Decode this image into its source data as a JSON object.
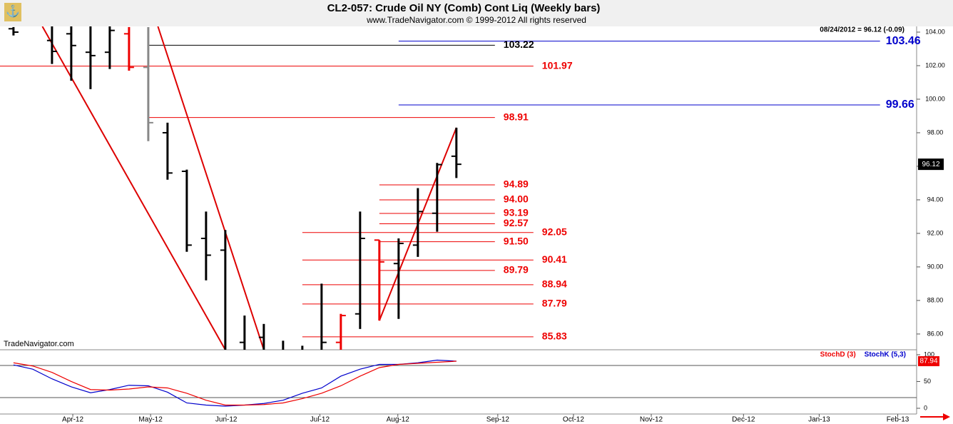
{
  "chart_data": [
    {
      "type": "ohlc",
      "title": "CL2-057:  Crude Oil NY (Comb) Cont Liq  (Weekly bars)",
      "subtitle": "www.TradeNavigator.com © 1999-2012 All rights reserved",
      "info": "08/24/2012 = 96.12 (-0.09)",
      "watermark": "TradeNavigator.com",
      "x": [
        0,
        2,
        3,
        4,
        5,
        6,
        7,
        8,
        9,
        10,
        11,
        12,
        13,
        14,
        15,
        16,
        17,
        18,
        19,
        20,
        21,
        22,
        23
      ],
      "open": [
        104.2,
        103.5,
        103.9,
        102.8,
        102.8,
        103.9,
        101.9,
        98.0,
        95.7,
        91.7,
        91.0,
        85.5,
        85.8,
        85.0,
        84.8,
        85.0,
        85.5,
        87.2,
        91.6,
        90.2,
        91.3,
        93.2,
        96.6
      ],
      "high": [
        104.3,
        104.6,
        104.6,
        104.4,
        104.5,
        104.3,
        104.3,
        98.6,
        95.8,
        93.3,
        92.2,
        87.1,
        86.6,
        85.6,
        85.3,
        89.0,
        87.2,
        93.3,
        91.6,
        91.7,
        94.7,
        96.2,
        98.3
      ],
      "low": [
        103.8,
        102.1,
        101.1,
        100.6,
        101.8,
        101.7,
        97.5,
        95.2,
        90.9,
        89.2,
        84.5,
        84.5,
        84.3,
        84.2,
        84.0,
        84.6,
        84.9,
        86.3,
        86.8,
        86.9,
        90.6,
        92.1,
        95.3
      ],
      "close": [
        104.0,
        102.85,
        103.2,
        102.6,
        104.1,
        101.9,
        98.6,
        95.6,
        91.3,
        90.7,
        84.9,
        85.0,
        84.8,
        84.5,
        84.4,
        85.5,
        87.1,
        91.7,
        90.3,
        91.4,
        93.3,
        96.1,
        96.12
      ],
      "colors": [
        "#000000",
        "#000000",
        "#000000",
        "#000000",
        "#000000",
        "#ee0000",
        "#888888",
        "#000000",
        "#000000",
        "#000000",
        "#000000",
        "#000000",
        "#000000",
        "#000000",
        "#000000",
        "#000000",
        "#ee0000",
        "#000000",
        "#ee0000",
        "#000000",
        "#000000",
        "#000000",
        "#000000"
      ],
      "xlim": [
        -0.7,
        46.9
      ],
      "ylim": [
        85.06,
        104.34
      ],
      "yticks": [
        {
          "value": 86,
          "label": "86.00"
        },
        {
          "value": 88,
          "label": "88.00"
        },
        {
          "value": 90,
          "label": "90.00"
        },
        {
          "value": 92,
          "label": "92.00"
        },
        {
          "value": 94,
          "label": "94.00"
        },
        {
          "value": 96,
          "label": "96.00"
        },
        {
          "value": 98,
          "label": "98.00"
        },
        {
          "value": 100,
          "label": "100.00"
        },
        {
          "value": 102,
          "label": "102.00"
        },
        {
          "value": 104,
          "label": "104.00"
        }
      ],
      "xticks": [
        {
          "value": 3.08,
          "label": "Apr-12"
        },
        {
          "value": 7.12,
          "label": "May-12"
        },
        {
          "value": 11.05,
          "label": "Jun-12"
        },
        {
          "value": 15.91,
          "label": "Jul-12"
        },
        {
          "value": 19.96,
          "label": "Aug-12"
        },
        {
          "value": 25.15,
          "label": "Sep-12"
        },
        {
          "value": 29.08,
          "label": "Oct-12"
        },
        {
          "value": 33.12,
          "label": "Nov-12"
        },
        {
          "value": 37.91,
          "label": "Dec-12"
        },
        {
          "value": 41.84,
          "label": "Jan-13"
        },
        {
          "value": 45.92,
          "label": "Feb-13"
        }
      ],
      "levels": [
        {
          "value": 103.22,
          "label": "103.22",
          "color": "#000000",
          "x": [
            7,
            25
          ]
        },
        {
          "value": 103.46,
          "label": "103.46",
          "color": "#0000cc",
          "x": [
            20,
            45
          ]
        },
        {
          "value": 101.97,
          "label": "101.97",
          "color": "#ee0000",
          "x": [
            -0.7,
            27
          ]
        },
        {
          "value": 99.66,
          "label": "99.66",
          "color": "#0000cc",
          "x": [
            20,
            45
          ]
        },
        {
          "value": 98.91,
          "label": "98.91",
          "color": "#ee0000",
          "x": [
            7,
            25
          ]
        },
        {
          "value": 94.89,
          "label": "94.89",
          "color": "#ee0000",
          "x": [
            19,
            25
          ]
        },
        {
          "value": 94.0,
          "label": "94.00",
          "color": "#ee0000",
          "x": [
            19,
            25
          ]
        },
        {
          "value": 93.19,
          "label": "93.19",
          "color": "#ee0000",
          "x": [
            19,
            25
          ]
        },
        {
          "value": 92.57,
          "label": "92.57",
          "color": "#ee0000",
          "x": [
            19,
            25
          ]
        },
        {
          "value": 92.05,
          "label": "92.05",
          "color": "#ee0000",
          "x": [
            15,
            27
          ]
        },
        {
          "value": 91.5,
          "label": "91.50",
          "color": "#ee0000",
          "x": [
            19,
            25
          ]
        },
        {
          "value": 90.41,
          "label": "90.41",
          "color": "#ee0000",
          "x": [
            15,
            27
          ]
        },
        {
          "value": 89.79,
          "label": "89.79",
          "color": "#ee0000",
          "x": [
            19,
            25
          ]
        },
        {
          "value": 88.94,
          "label": "88.94",
          "color": "#ee0000",
          "x": [
            15,
            27
          ]
        },
        {
          "value": 87.79,
          "label": "87.79",
          "color": "#ee0000",
          "x": [
            15,
            27
          ]
        },
        {
          "value": 85.83,
          "label": "85.83",
          "color": "#ee0000",
          "x": [
            15,
            27
          ]
        }
      ],
      "trendlines": [
        {
          "color": "#dd0000",
          "points": [
            [
              1.5,
              104.34
            ],
            [
              11,
              85.06
            ]
          ]
        },
        {
          "color": "#dd0000",
          "points": [
            [
              7.5,
              104.34
            ],
            [
              13,
              85.06
            ]
          ]
        },
        {
          "color": "#dd0000",
          "points": [
            [
              19,
              86.8
            ],
            [
              23,
              98.3
            ]
          ]
        }
      ]
    },
    {
      "type": "line",
      "x": [
        0,
        1,
        2,
        3,
        4,
        5,
        6,
        7,
        8,
        9,
        10,
        11,
        12,
        13,
        14,
        15,
        16,
        17,
        18,
        19,
        20,
        21,
        22,
        23
      ],
      "series": [
        {
          "name": "StochD (3)",
          "color": "#ee0000",
          "values": [
            85,
            79,
            67,
            50,
            35,
            34,
            36,
            40,
            38,
            28,
            15,
            6,
            6,
            7,
            10,
            18,
            28,
            42,
            60,
            76,
            82,
            84,
            86,
            87.94
          ]
        },
        {
          "name": "StochK (5,3)",
          "color": "#0000cc",
          "values": [
            81,
            73,
            55,
            40,
            29,
            35,
            43,
            42,
            30,
            10,
            6,
            4,
            6,
            9,
            15,
            28,
            38,
            60,
            73,
            82,
            82,
            85,
            90,
            88
          ]
        }
      ],
      "xlim": [
        -0.7,
        46.9
      ],
      "ylim": [
        -10.7,
        109.3
      ],
      "yticks": [
        0,
        50,
        100
      ],
      "levels": [
        80,
        20
      ]
    }
  ]
}
